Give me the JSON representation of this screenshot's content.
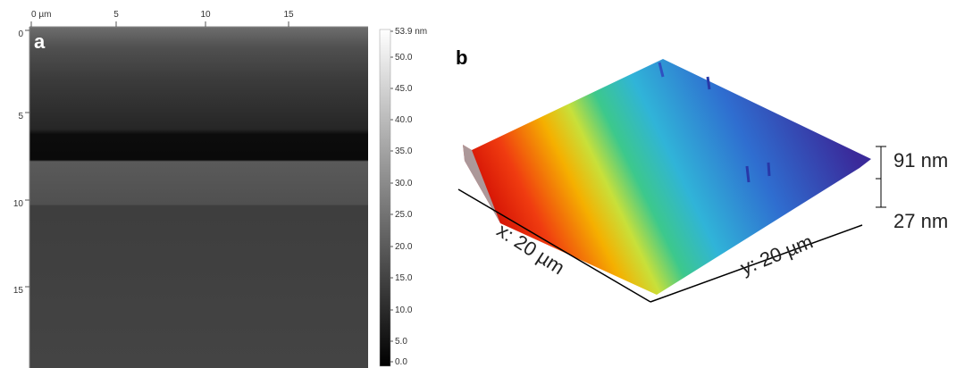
{
  "panel_a": {
    "label": "a",
    "x_ticks": [
      "0 µm",
      "5",
      "10",
      "15"
    ],
    "y_ticks": [
      "0",
      "5",
      "10",
      "15"
    ],
    "colorbar_ticks": [
      "53.9 nm",
      "50.0",
      "45.0",
      "40.0",
      "35.0",
      "30.0",
      "25.0",
      "20.0",
      "15.0",
      "10.0",
      "5.0",
      "0.0"
    ]
  },
  "panel_b": {
    "label": "b",
    "x_axis_label": "x: 20 µm",
    "y_axis_label": "y: 20 µm",
    "scale_top": "91 nm",
    "scale_bottom": "27 nm"
  }
}
